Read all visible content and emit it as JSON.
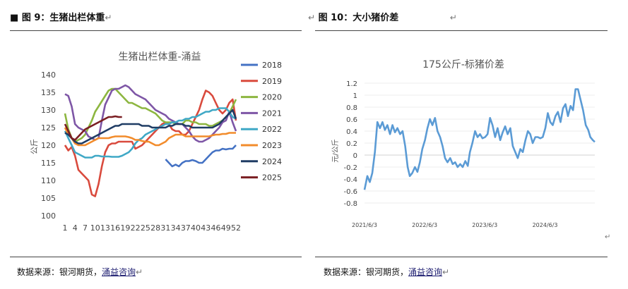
{
  "left_figure": {
    "label": "图 9：生猪出栏体重",
    "bullet": "■",
    "source_prefix": "数据来源：银河期货，",
    "source_link": "涌益咨询"
  },
  "right_figure": {
    "label": "图 10：大小猪价差",
    "source_prefix": "数据来源：银河期货，",
    "source_link": "涌益咨询"
  },
  "return_mark": "↵",
  "colors": {
    "2018": "#4472C4",
    "2019": "#D94A3D",
    "2020": "#8DB640",
    "2021": "#7E56A6",
    "2022": "#3FA8C6",
    "2023": "#F28C2C",
    "2024": "#1F3C64",
    "2025": "#7A1E22",
    "spread": "#5B9BD5"
  },
  "chart_data": [
    {
      "type": "line",
      "title": "生猪出栏体重-涌益",
      "xlabel": "",
      "ylabel": "公斤",
      "ylim": [
        100,
        140
      ],
      "yticks": [
        "100",
        "105",
        "110",
        "115",
        "120",
        "125",
        "130",
        "135",
        "140"
      ],
      "xticks": [
        "1",
        "4",
        "7",
        "10",
        "13",
        "16",
        "19",
        "22",
        "25",
        "28",
        "31",
        "34",
        "37",
        "40",
        "43",
        "46",
        "49",
        "52"
      ],
      "legend": "right",
      "series": [
        {
          "name": "2018",
          "x": [
            31,
            32,
            33,
            34,
            35,
            36,
            37,
            38,
            39,
            40,
            41,
            42,
            43,
            44,
            45,
            46,
            47,
            48,
            49,
            50,
            51,
            52
          ],
          "values": [
            116,
            115,
            114,
            114.5,
            114,
            115,
            115.5,
            115.5,
            115.8,
            115.5,
            115,
            115,
            116,
            117,
            118,
            118.5,
            118.5,
            119,
            118.8,
            119,
            119,
            120
          ]
        },
        {
          "name": "2019",
          "x": [
            1,
            2,
            3,
            4,
            5,
            6,
            7,
            8,
            9,
            10,
            11,
            12,
            13,
            14,
            15,
            16,
            17,
            18,
            19,
            20,
            21,
            22,
            23,
            24,
            25,
            26,
            27,
            28,
            29,
            30,
            31,
            32,
            33,
            34,
            35,
            36,
            37,
            38,
            39,
            40,
            41,
            42,
            43,
            44,
            45,
            46,
            47,
            48,
            49,
            50,
            51,
            52
          ],
          "values": [
            120,
            118.5,
            119.5,
            117,
            113,
            112,
            111,
            110,
            106,
            105.5,
            109,
            114,
            118,
            120,
            120.5,
            120.5,
            121,
            121,
            121,
            121,
            121,
            119,
            119.5,
            120,
            121,
            122,
            123,
            124,
            125,
            126,
            126.5,
            126,
            124.5,
            124,
            124,
            123,
            123,
            124,
            126,
            128,
            130,
            133,
            135.5,
            135,
            134,
            132,
            130,
            129,
            130,
            132,
            133,
            127
          ]
        },
        {
          "name": "2020",
          "x": [
            1,
            2,
            3,
            4,
            5,
            6,
            7,
            8,
            9,
            10,
            11,
            12,
            13,
            14,
            15,
            16,
            17,
            18,
            19,
            20,
            21,
            22,
            23,
            24,
            25,
            26,
            27,
            28,
            29,
            30,
            31,
            32,
            33,
            34,
            35,
            36,
            37,
            38,
            39,
            40,
            41,
            42,
            43,
            44,
            45,
            46,
            47,
            48,
            49,
            50,
            51,
            52
          ],
          "values": [
            129,
            124.5,
            122,
            121,
            121.5,
            122,
            123,
            125,
            127,
            129.5,
            131,
            132.5,
            134,
            135.5,
            136,
            136,
            135,
            134,
            133,
            132,
            132,
            131.5,
            131,
            130.5,
            130.5,
            130,
            129.5,
            129,
            128,
            127,
            126.5,
            126.5,
            126.5,
            126,
            126,
            126,
            127,
            127,
            126.5,
            126.5,
            126,
            126,
            126,
            125.5,
            125.5,
            126,
            126.5,
            127,
            128,
            129,
            131,
            133
          ]
        },
        {
          "name": "2021",
          "x": [
            1,
            2,
            3,
            4,
            5,
            6,
            7,
            8,
            9,
            10,
            11,
            12,
            13,
            14,
            15,
            16,
            17,
            18,
            19,
            20,
            21,
            22,
            23,
            24,
            25,
            26,
            27,
            28,
            29,
            30,
            31,
            32,
            33,
            34,
            35,
            36,
            37,
            38,
            39,
            40,
            41,
            42,
            43,
            44,
            45,
            46,
            47,
            48,
            49,
            50,
            51,
            52
          ],
          "values": [
            134.5,
            134,
            131,
            126,
            125,
            124.5,
            124,
            122.5,
            122,
            121.5,
            122,
            127,
            131.5,
            133.5,
            135.5,
            136,
            136,
            136.5,
            137,
            136.5,
            135.5,
            134.5,
            134,
            133.5,
            133,
            132,
            131,
            130,
            129.5,
            129,
            128.5,
            127.5,
            127,
            126.5,
            126,
            126,
            125,
            124,
            122.5,
            121.5,
            121,
            121,
            121.5,
            122,
            123,
            124,
            125,
            126.5,
            127,
            129.5,
            126.5,
            124
          ]
        },
        {
          "name": "2022",
          "x": [
            1,
            2,
            3,
            4,
            5,
            6,
            7,
            8,
            9,
            10,
            11,
            12,
            13,
            14,
            15,
            16,
            17,
            18,
            19,
            20,
            21,
            22,
            23,
            24,
            25,
            26,
            27,
            28,
            29,
            30,
            31,
            32,
            33,
            34,
            35,
            36,
            37,
            38,
            39,
            40,
            41,
            42,
            43,
            44,
            45,
            46,
            47,
            48,
            49,
            50,
            51,
            52
          ],
          "values": [
            124,
            122,
            120,
            118,
            117.5,
            117,
            116.5,
            116.5,
            116.5,
            117,
            117,
            116.8,
            116.8,
            116.8,
            116.7,
            116.7,
            116.7,
            117,
            117.5,
            118,
            119,
            120.5,
            121.5,
            122,
            123,
            123.5,
            124,
            124.5,
            125,
            125.5,
            126,
            126,
            126.5,
            126.5,
            127,
            127,
            127.5,
            127.5,
            128,
            128,
            128.5,
            129,
            129.5,
            129.5,
            130,
            130,
            130.5,
            130.5,
            130.5,
            129.5,
            128,
            127.5
          ]
        },
        {
          "name": "2023",
          "x": [
            1,
            2,
            3,
            4,
            5,
            6,
            7,
            8,
            9,
            10,
            11,
            12,
            13,
            14,
            15,
            16,
            17,
            18,
            19,
            20,
            21,
            22,
            23,
            24,
            25,
            26,
            27,
            28,
            29,
            30,
            31,
            32,
            33,
            34,
            35,
            36,
            37,
            38,
            39,
            40,
            41,
            42,
            43,
            44,
            45,
            46,
            47,
            48,
            49,
            50,
            51,
            52
          ],
          "values": [
            125,
            123,
            122,
            120.5,
            120,
            120,
            120,
            120.5,
            121,
            121.5,
            122,
            122,
            122,
            122,
            122.3,
            122.5,
            122.5,
            122.5,
            122.5,
            122.3,
            122,
            121.5,
            121.5,
            121.2,
            121,
            121,
            120.5,
            120,
            120,
            120.5,
            121,
            122,
            122.5,
            123,
            123,
            123,
            122.5,
            122.5,
            122.5,
            122.5,
            122.5,
            122.5,
            122.5,
            122.5,
            122.8,
            123,
            123,
            123.2,
            123.2,
            123.5,
            123.5,
            123.5
          ]
        },
        {
          "name": "2024",
          "x": [
            1,
            2,
            3,
            4,
            5,
            6,
            7,
            8,
            9,
            10,
            11,
            12,
            13,
            14,
            15,
            16,
            17,
            18,
            19,
            20,
            21,
            22,
            23,
            24,
            25,
            26,
            27,
            28,
            29,
            30,
            31,
            32,
            33,
            34,
            35,
            36,
            37,
            38,
            39,
            40,
            41,
            42,
            43,
            44,
            45,
            46,
            47,
            48,
            49,
            50,
            51,
            52
          ],
          "values": [
            123.5,
            123,
            122,
            121,
            120.5,
            120.5,
            121,
            121.5,
            122,
            122.5,
            123,
            123.5,
            124,
            124.5,
            125,
            125.5,
            125.5,
            126,
            126,
            126,
            126,
            126,
            126,
            125.5,
            125.5,
            125.5,
            125,
            125,
            125,
            125,
            125,
            125.5,
            125.5,
            126,
            126,
            126,
            125.5,
            125.5,
            125,
            125,
            125,
            125,
            125,
            125,
            125,
            125.5,
            126,
            127,
            128,
            129,
            130,
            127.5
          ]
        },
        {
          "name": "2025",
          "x": [
            1,
            2,
            3,
            4,
            5,
            6,
            7,
            8,
            9,
            10,
            11,
            12,
            13,
            14,
            15,
            16,
            17,
            18
          ],
          "values": [
            126,
            124,
            122,
            121.5,
            122.5,
            123.5,
            124.5,
            125,
            125.5,
            126,
            126.5,
            127,
            127.5,
            128,
            128,
            128.2,
            128,
            128
          ]
        }
      ]
    },
    {
      "type": "line",
      "title": "175公斤-标猪价差",
      "xlabel": "",
      "ylabel": "元/公斤",
      "ylim": [
        -0.8,
        1.2
      ],
      "yticks": [
        "-0.8",
        "-0.6",
        "-0.4",
        "-0.2",
        "0",
        "0.2",
        "0.4",
        "0.6",
        "0.8",
        "1",
        "1.2"
      ],
      "xticks": [
        "2021/6/3",
        "2022/6/3",
        "2023/6/3",
        "2024/6/3"
      ],
      "x_start": "2021/6/3",
      "x_end": "2025/4/1",
      "series": [
        {
          "name": "",
          "x": [
            "2021/6/3",
            "2021/6/20",
            "2021/7/5",
            "2021/7/20",
            "2021/8/5",
            "2021/8/20",
            "2021/9/5",
            "2021/9/20",
            "2021/10/5",
            "2021/10/20",
            "2021/11/5",
            "2021/11/20",
            "2021/12/5",
            "2021/12/20",
            "2022/1/5",
            "2022/1/20",
            "2022/2/5",
            "2022/2/20",
            "2022/3/5",
            "2022/3/20",
            "2022/4/5",
            "2022/4/20",
            "2022/5/5",
            "2022/5/20",
            "2022/6/5",
            "2022/6/20",
            "2022/7/5",
            "2022/7/20",
            "2022/8/5",
            "2022/8/20",
            "2022/9/5",
            "2022/9/20",
            "2022/10/5",
            "2022/10/20",
            "2022/11/5",
            "2022/11/20",
            "2022/12/5",
            "2022/12/20",
            "2023/1/5",
            "2023/1/20",
            "2023/2/5",
            "2023/2/20",
            "2023/3/5",
            "2023/3/20",
            "2023/4/5",
            "2023/4/20",
            "2023/5/5",
            "2023/5/20",
            "2023/6/5",
            "2023/6/20",
            "2023/7/5",
            "2023/7/20",
            "2023/8/5",
            "2023/8/20",
            "2023/9/5",
            "2023/9/20",
            "2023/10/5",
            "2023/10/20",
            "2023/11/5",
            "2023/11/20",
            "2023/12/5",
            "2023/12/20",
            "2024/1/5",
            "2024/1/20",
            "2024/2/5",
            "2024/2/20",
            "2024/3/5",
            "2024/3/20",
            "2024/4/5",
            "2024/4/20",
            "2024/5/5",
            "2024/5/20",
            "2024/6/5",
            "2024/6/20",
            "2024/7/5",
            "2024/7/20",
            "2024/8/5",
            "2024/8/20",
            "2024/9/5",
            "2024/9/20",
            "2024/10/5",
            "2024/10/20",
            "2024/11/5",
            "2024/11/20",
            "2024/12/5",
            "2024/12/20",
            "2025/1/5",
            "2025/1/20",
            "2025/2/5",
            "2025/2/20",
            "2025/3/5",
            "2025/3/20",
            "2025/4/1"
          ],
          "values": [
            -0.58,
            -0.35,
            -0.45,
            -0.3,
            0.05,
            0.55,
            0.45,
            0.55,
            0.42,
            0.5,
            0.35,
            0.5,
            0.38,
            0.45,
            0.35,
            0.4,
            0.15,
            -0.2,
            -0.35,
            -0.3,
            -0.2,
            -0.28,
            -0.12,
            0.1,
            0.25,
            0.45,
            0.6,
            0.5,
            0.62,
            0.4,
            0.3,
            0.15,
            -0.05,
            -0.12,
            -0.05,
            -0.15,
            -0.12,
            -0.2,
            -0.15,
            -0.2,
            -0.1,
            -0.18,
            0.05,
            0.2,
            0.4,
            0.3,
            0.35,
            0.28,
            0.3,
            0.35,
            0.62,
            0.5,
            0.3,
            0.45,
            0.25,
            0.38,
            0.48,
            0.35,
            0.45,
            0.15,
            0.05,
            -0.05,
            0.1,
            0.05,
            0.25,
            0.4,
            0.35,
            0.2,
            0.3,
            0.3,
            0.28,
            0.3,
            0.45,
            0.7,
            0.55,
            0.5,
            0.65,
            0.72,
            0.55,
            0.78,
            0.85,
            0.65,
            0.82,
            0.75,
            1.1,
            1.1,
            0.92,
            0.75,
            0.5,
            0.42,
            0.3,
            0.25,
            0.22
          ]
        }
      ]
    }
  ]
}
